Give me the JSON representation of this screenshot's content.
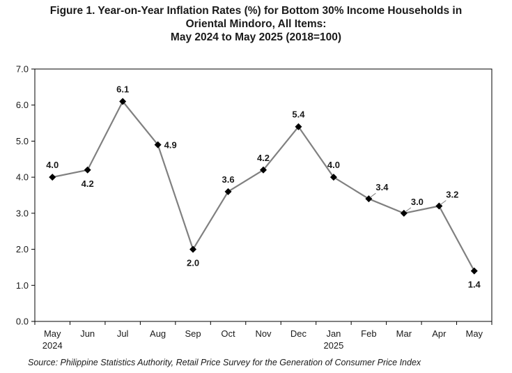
{
  "title": {
    "line1": "Figure 1. Year-on-Year Inflation Rates (%) for Bottom 30% Income Households in",
    "line2": "Oriental Mindoro, All Items:",
    "line3": "May 2024 to May 2025 (2018=100)"
  },
  "source": "Source: Philippine Statistics Authority, Retail Price Survey for the Generation of Consumer Price Index",
  "chart_data": {
    "type": "line",
    "title": "Figure 1. Year-on-Year Inflation Rates (%) for Bottom 30% Income Households in Oriental Mindoro, All Items: May 2024 to May 2025 (2018=100)",
    "categories": [
      "May",
      "Jun",
      "Jul",
      "Aug",
      "Sep",
      "Oct",
      "Nov",
      "Dec",
      "Jan",
      "Feb",
      "Mar",
      "Apr",
      "May"
    ],
    "category_sublabels": [
      "2024",
      "",
      "",
      "",
      "",
      "",
      "",
      "",
      "2025",
      "",
      "",
      "",
      ""
    ],
    "series": [
      {
        "values": [
          4.0,
          4.2,
          6.1,
          4.9,
          2.0,
          3.6,
          4.2,
          5.4,
          4.0,
          3.4,
          3.0,
          3.2,
          1.4
        ]
      }
    ],
    "data_labels": [
      "4.0",
      "4.2",
      "6.1",
      "4.9",
      "2.0",
      "3.6",
      "4.2",
      "5.4",
      "4.0",
      "3.4",
      "3.0",
      "3.2",
      "1.4"
    ],
    "label_positions": [
      "above",
      "below",
      "above",
      "right",
      "below",
      "above",
      "above",
      "above",
      "above",
      "above-right",
      "above-right",
      "above-right",
      "below"
    ],
    "ylim": [
      0,
      7
    ],
    "yticks": [
      "0.0",
      "1.0",
      "2.0",
      "3.0",
      "4.0",
      "5.0",
      "6.0",
      "7.0"
    ],
    "grid": false,
    "legend": "none",
    "line_color": "#808080",
    "marker_color": "#000000",
    "marker": "diamond"
  }
}
